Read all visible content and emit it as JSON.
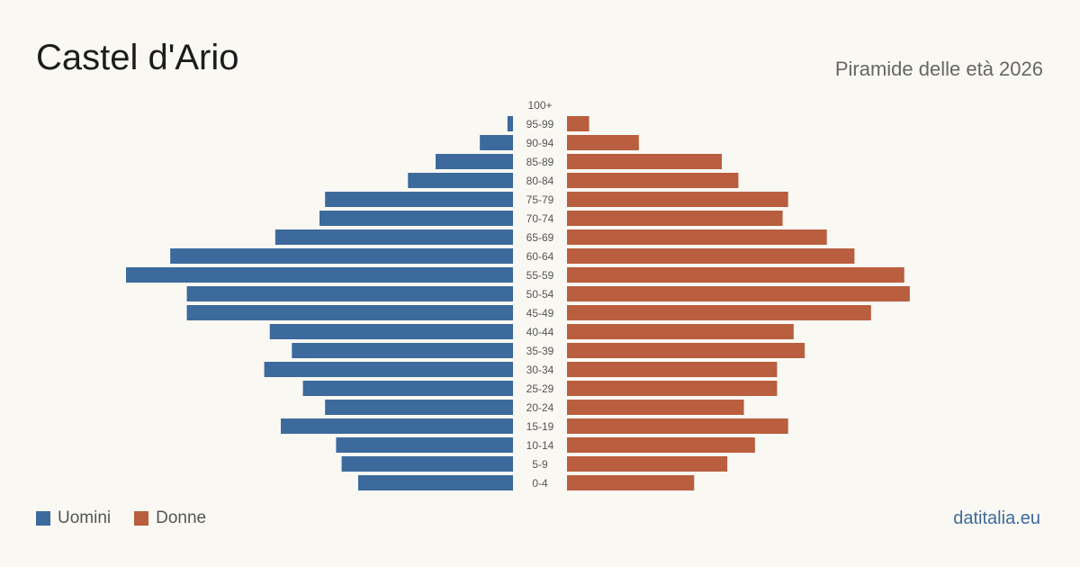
{
  "title": "Castel d'Ario",
  "subtitle": "Piramide delle età 2026",
  "source": "datitalia.eu",
  "colors": {
    "men": "#3d6a9c",
    "women": "#b95e3e",
    "age_label": "#555555"
  },
  "legend": [
    {
      "label": "Uomini",
      "color": "#3d6a9c"
    },
    {
      "label": "Donne",
      "color": "#b95e3e"
    }
  ],
  "chart_data": {
    "type": "bar",
    "orientation": "horizontal-pyramid",
    "categories": [
      "100+",
      "95-99",
      "90-94",
      "85-89",
      "80-84",
      "75-79",
      "70-74",
      "65-69",
      "60-64",
      "55-59",
      "50-54",
      "45-49",
      "40-44",
      "35-39",
      "30-34",
      "25-29",
      "20-24",
      "15-19",
      "10-14",
      "5-9",
      "0-4"
    ],
    "series": [
      {
        "name": "Uomini",
        "values": [
          0,
          1,
          6,
          14,
          19,
          34,
          35,
          43,
          62,
          70,
          59,
          59,
          44,
          40,
          45,
          38,
          34,
          42,
          32,
          31,
          28
        ]
      },
      {
        "name": "Donne",
        "values": [
          0,
          4,
          13,
          28,
          31,
          40,
          39,
          47,
          52,
          61,
          62,
          55,
          41,
          43,
          38,
          38,
          32,
          40,
          34,
          29,
          23
        ]
      }
    ],
    "legend_position": "bottom-left",
    "grid": false
  }
}
